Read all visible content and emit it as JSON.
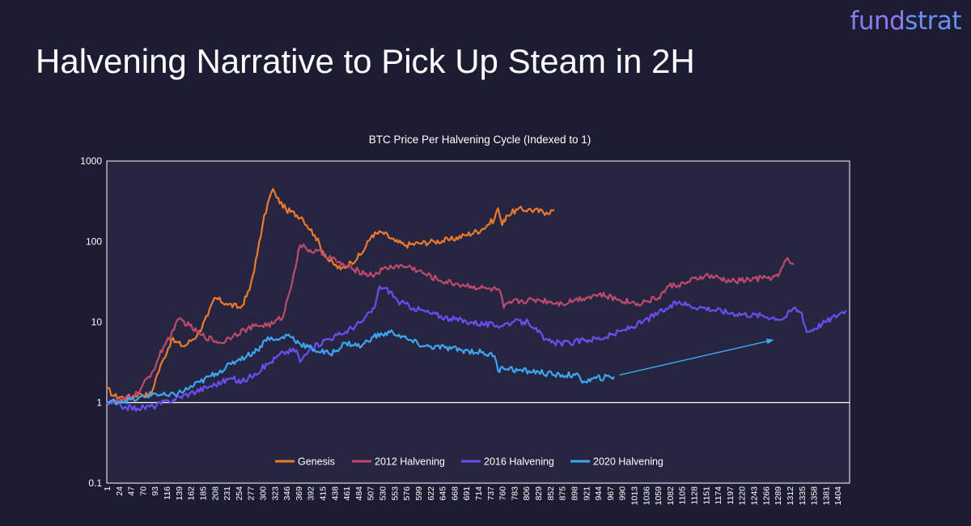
{
  "logo": {
    "part1": "fund",
    "part2": "strat"
  },
  "page_title": "Halvening Narrative to Pick Up Steam in 2H",
  "chart_data": {
    "type": "line",
    "title": "BTC Price Per Halvening Cycle (Indexed to 1)",
    "xlabel": "",
    "ylabel": "",
    "y_scale": "log",
    "ylim": [
      0.1,
      1000
    ],
    "y_ticks": [
      0.1,
      1,
      10,
      100,
      1000
    ],
    "y_tick_labels": [
      "0.1",
      "1",
      "10",
      "100",
      "1000"
    ],
    "xlim": [
      1,
      1427
    ],
    "x_tick_labels": [
      1,
      24,
      47,
      70,
      93,
      116,
      139,
      162,
      185,
      208,
      231,
      254,
      277,
      300,
      323,
      346,
      369,
      392,
      415,
      438,
      461,
      484,
      507,
      530,
      553,
      576,
      599,
      622,
      645,
      668,
      691,
      714,
      737,
      760,
      783,
      806,
      829,
      852,
      875,
      898,
      921,
      944,
      967,
      990,
      1013,
      1036,
      1059,
      1082,
      1105,
      1128,
      1151,
      1174,
      1197,
      1220,
      1243,
      1266,
      1289,
      1312,
      1335,
      1358,
      1381,
      1404
    ],
    "reference_line": 1,
    "grid": false,
    "legend_position": "bottom-center",
    "series": [
      {
        "name": "Genesis",
        "color": "#f07a2a",
        "x": [
          1,
          15,
          40,
          65,
          85,
          95,
          110,
          125,
          150,
          175,
          195,
          208,
          230,
          258,
          275,
          290,
          300,
          310,
          320,
          327,
          345,
          375,
          400,
          425,
          450,
          470,
          490,
          510,
          530,
          555,
          575,
          600,
          630,
          660,
          690,
          720,
          745,
          752,
          760,
          768,
          790,
          810,
          845,
          860
        ],
        "y": [
          1.5,
          1.2,
          1.15,
          1.3,
          1.2,
          2,
          3.5,
          6,
          5,
          7,
          12,
          20,
          17,
          15,
          25,
          70,
          160,
          300,
          450,
          350,
          250,
          200,
          120,
          60,
          45,
          55,
          70,
          120,
          130,
          100,
          90,
          95,
          100,
          105,
          120,
          140,
          190,
          260,
          160,
          210,
          250,
          250,
          230,
          245
        ]
      },
      {
        "name": "2012 Halvening",
        "color": "#bf4a6b",
        "x": [
          1,
          30,
          60,
          90,
          110,
          130,
          140,
          160,
          180,
          220,
          245,
          265,
          290,
          320,
          340,
          360,
          372,
          385,
          420,
          445,
          475,
          510,
          530,
          555,
          585,
          610,
          640,
          670,
          700,
          730,
          755,
          763,
          780,
          830,
          875,
          900,
          945,
          985,
          1020,
          1060,
          1080,
          1110,
          1150,
          1200,
          1260,
          1290,
          1305,
          1320
        ],
        "y": [
          1,
          1.05,
          1.3,
          2.5,
          5,
          8,
          11,
          9,
          7,
          5.5,
          7,
          8,
          9,
          9.5,
          12,
          40,
          90,
          80,
          70,
          55,
          45,
          38,
          45,
          50,
          48,
          40,
          33,
          30,
          28,
          26,
          25,
          15,
          18,
          19,
          17,
          19,
          22,
          19,
          17,
          20,
          28,
          30,
          38,
          32,
          35,
          37,
          60,
          52
        ]
      },
      {
        "name": "2016 Halvening",
        "color": "#6a4ff5",
        "x": [
          1,
          20,
          35,
          60,
          90,
          120,
          160,
          200,
          240,
          260,
          285,
          310,
          340,
          365,
          372,
          390,
          420,
          450,
          490,
          515,
          525,
          545,
          560,
          590,
          620,
          660,
          700,
          750,
          780,
          810,
          825,
          840,
          860,
          890,
          920,
          960,
          995,
          1030,
          1060,
          1080,
          1100,
          1120,
          1150,
          1200,
          1260,
          1300,
          1320,
          1335,
          1345,
          1380,
          1410,
          1420
        ],
        "y": [
          1,
          0.95,
          0.88,
          0.85,
          0.9,
          1.05,
          1.3,
          1.6,
          2,
          1.8,
          2.3,
          3,
          4.2,
          4.5,
          3.2,
          4.5,
          6,
          7,
          10,
          15,
          28,
          24,
          18,
          15,
          13,
          11,
          10,
          9,
          10,
          10,
          8.5,
          6,
          5.5,
          5.5,
          6,
          6.5,
          8,
          10,
          13,
          15,
          18,
          16,
          15,
          13,
          12,
          11,
          15,
          13,
          7.5,
          10,
          13,
          14
        ]
      },
      {
        "name": "2020 Halvening",
        "color": "#3ea6f2",
        "x": [
          1,
          30,
          60,
          90,
          120,
          150,
          180,
          210,
          240,
          255,
          270,
          290,
          310,
          320,
          330,
          350,
          370,
          400,
          430,
          460,
          490,
          510,
          530,
          550,
          580,
          610,
          650,
          680,
          720,
          745,
          752,
          760,
          790,
          830,
          860,
          900,
          920,
          940,
          975
        ],
        "y": [
          1,
          1.05,
          1.1,
          1.3,
          1.2,
          1.4,
          1.8,
          2.3,
          3,
          3.5,
          3.8,
          4.5,
          6.5,
          6,
          6,
          7,
          5.5,
          4.5,
          4,
          5.5,
          5,
          6.5,
          7,
          7.5,
          6,
          5,
          4.8,
          4.5,
          4.2,
          3.8,
          2.5,
          2.8,
          2.5,
          2.4,
          2.2,
          2.2,
          1.8,
          2,
          2.1
        ]
      }
    ],
    "annotation_arrow": {
      "color": "#3ea6f2",
      "from": [
        985,
        2.2
      ],
      "to": [
        1280,
        6
      ]
    }
  }
}
